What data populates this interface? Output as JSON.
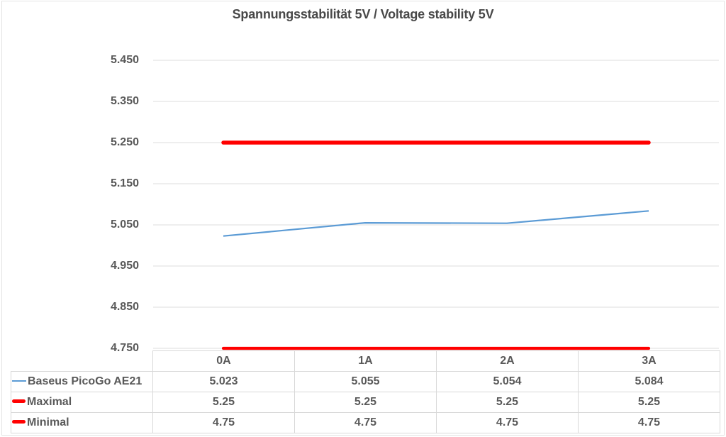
{
  "title": "Spannungsstabilität 5V / Voltage stability 5V",
  "colors": {
    "series_blue": "#5B9BD5",
    "series_red": "#FF0000",
    "gridline": "#dcdcdc",
    "text": "#595959",
    "table_border": "#d9d9d9"
  },
  "chart_data": {
    "type": "line",
    "title": "Spannungsstabilität 5V / Voltage stability 5V",
    "categories": [
      "0A",
      "1A",
      "2A",
      "3A"
    ],
    "series": [
      {
        "name": "Baseus PicoGo AE21",
        "values": [
          5.023,
          5.055,
          5.054,
          5.084
        ],
        "color": "#5B9BD5",
        "stroke_width": 2.2,
        "cap": "butt"
      },
      {
        "name": "Maximal",
        "values": [
          5.25,
          5.25,
          5.25,
          5.25
        ],
        "color": "#FF0000",
        "stroke_width": 5.5,
        "cap": "round"
      },
      {
        "name": "Minimal",
        "values": [
          4.75,
          4.75,
          4.75,
          4.75
        ],
        "color": "#FF0000",
        "stroke_width": 4.2,
        "cap": "round"
      }
    ],
    "ylim": [
      4.75,
      5.45
    ],
    "ytick_labels": [
      "5.450",
      "5.350",
      "5.250",
      "5.150",
      "5.050",
      "4.950",
      "4.850",
      "4.750"
    ],
    "grid": true,
    "legend_position": "data-table-left"
  },
  "table": {
    "column_headers": [
      "0A",
      "1A",
      "2A",
      "3A"
    ],
    "rows": [
      {
        "label": "Baseus PicoGo AE21",
        "swatch": "thin-blue-line",
        "values": [
          "5.023",
          "5.055",
          "5.054",
          "5.084"
        ]
      },
      {
        "label": "Maximal",
        "swatch": "thick-red-line",
        "values": [
          "5.25",
          "5.25",
          "5.25",
          "5.25"
        ]
      },
      {
        "label": "Minimal",
        "swatch": "thick-red-line",
        "values": [
          "4.75",
          "4.75",
          "4.75",
          "4.75"
        ]
      }
    ]
  }
}
